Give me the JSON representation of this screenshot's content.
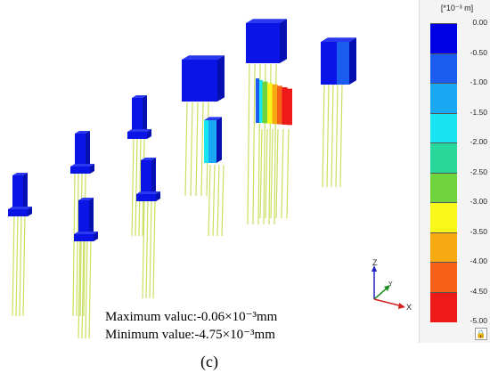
{
  "legend": {
    "unit": "[*10⁻³ m]",
    "entries": [
      {
        "label": "0.00",
        "color": "#0000e6"
      },
      {
        "label": "-0.50",
        "color": "#1a5cf0"
      },
      {
        "label": "-1.00",
        "color": "#1aa8f2"
      },
      {
        "label": "-1.50",
        "color": "#19e5f2"
      },
      {
        "label": "-2.00",
        "color": "#28d79a"
      },
      {
        "label": "-2.50",
        "color": "#6fd43c"
      },
      {
        "label": "-3.00",
        "color": "#f7f71a"
      },
      {
        "label": "-3.50",
        "color": "#f7aa12"
      },
      {
        "label": "-4.00",
        "color": "#f7621a"
      },
      {
        "label": "-4.50",
        "color": "#ee1a1a"
      },
      {
        "label": "-5.00",
        "color": ""
      }
    ],
    "lock_icon": "lock-icon"
  },
  "stats": {
    "maximum": "Maximum valuc:-0.06×10⁻³mm",
    "minimum": "Minimum value:-4.75×10⁻³mm"
  },
  "caption": "(c)",
  "axes": {
    "z": "Z",
    "y": "Y",
    "x": "X"
  },
  "colors": {
    "pile": "#c8e060",
    "cap": "#0a14e6",
    "cap_side": "#0610b0",
    "cap_top": "#2a38f0"
  }
}
